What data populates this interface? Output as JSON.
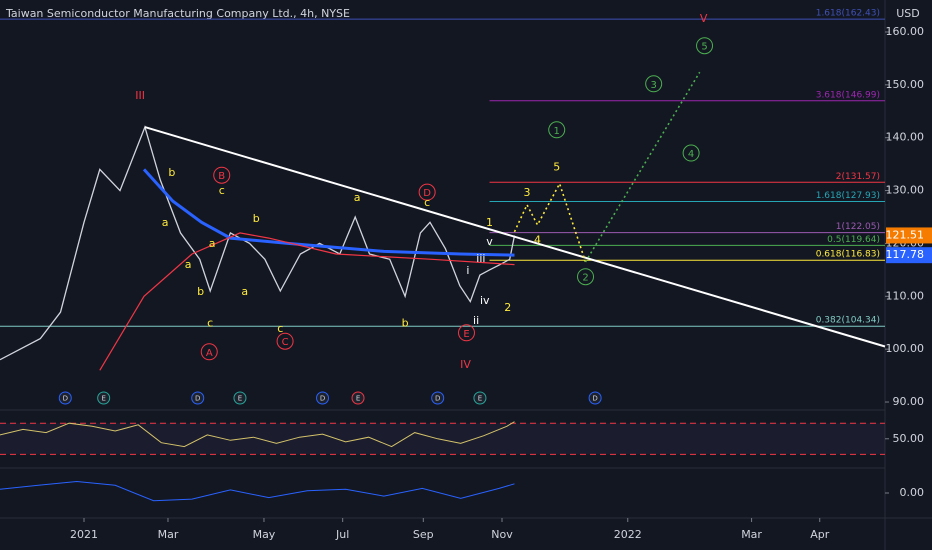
{
  "chart_data": {
    "type": "line",
    "title": "Taiwan Semiconductor Manufacturing Company Ltd., 4h, NYSE",
    "currency": "USD",
    "xlim": [
      0,
      92.2
    ],
    "ylim": [
      88.49,
      166.05
    ],
    "xticks": [
      {
        "value": 8.75,
        "label": "2021"
      },
      {
        "value": 17.5,
        "label": "Mar"
      },
      {
        "value": 27.5,
        "label": "May"
      },
      {
        "value": 35.7,
        "label": "Jul"
      },
      {
        "value": 44.1,
        "label": "Sep"
      },
      {
        "value": 52.3,
        "label": "Nov"
      },
      {
        "value": 65.4,
        "label": "2022"
      },
      {
        "value": 78.3,
        "label": "Mar"
      },
      {
        "value": 85.4,
        "label": "Apr"
      }
    ],
    "yticks": [
      {
        "value": 160,
        "label": "160.00"
      },
      {
        "value": 150,
        "label": "150.00"
      },
      {
        "value": 140,
        "label": "140.00"
      },
      {
        "value": 130,
        "label": "130.00"
      },
      {
        "value": 120,
        "label": "120.00"
      },
      {
        "value": 110,
        "label": "110.00"
      },
      {
        "value": 100,
        "label": "100.00"
      },
      {
        "value": 90,
        "label": "90.00"
      }
    ],
    "series": [
      {
        "color": "#d1d4dc",
        "width": 1.3,
        "x": [
          0,
          4.2,
          6.3,
          8.75,
          10.4,
          12.5,
          15.1,
          16.7,
          18.8,
          20.8,
          21.9,
          24,
          26,
          27.6,
          29.2,
          31.3,
          33.3,
          35.4,
          37,
          38.5,
          40.6,
          42.2,
          43.8,
          44.8,
          46.4,
          47.9,
          49,
          50,
          51,
          52.1,
          53.1,
          53.6
        ],
        "values": [
          98,
          102,
          107,
          124,
          134,
          130,
          142,
          132,
          122,
          117,
          111,
          122,
          120,
          117,
          111,
          118,
          120,
          118,
          125,
          118,
          117,
          110,
          122,
          124,
          119,
          112,
          109,
          114,
          115,
          116,
          117,
          121.5
        ]
      },
      {
        "color": "#2962ff",
        "width": 3,
        "x": [
          15,
          18,
          21,
          24,
          30,
          40,
          48,
          53.6
        ],
        "values": [
          134,
          128,
          124,
          121,
          120,
          118.5,
          118,
          117.8
        ]
      },
      {
        "color": "#f23645",
        "width": 1.2,
        "x": [
          10.4,
          15,
          20,
          25,
          28,
          35,
          45,
          53.6
        ],
        "values": [
          96,
          110,
          118,
          122,
          121,
          118,
          117,
          116
        ]
      }
    ],
    "price_labels": [
      {
        "value": 121.51,
        "color": "#f57c00"
      },
      {
        "value": 117.78,
        "color": "#2962ff"
      }
    ],
    "trendline": {
      "color": "#ffffff",
      "x": [
        15.1,
        92.2
      ],
      "values": [
        142,
        100.5
      ]
    },
    "projections": [
      {
        "color": "#ffeb3b",
        "x": [
          53.6,
          54.9,
          56.0,
          58.3,
          61.0
        ],
        "values": [
          122.2,
          127.3,
          123.5,
          131.3,
          116.5
        ]
      },
      {
        "color": "#4caf50",
        "x": [
          61.0,
          72.9
        ],
        "values": [
          116.5,
          152.4
        ]
      }
    ],
    "fib_levels": [
      {
        "label": "1.618(162.43)",
        "value": 162.43,
        "color": "#3f51b5",
        "from": 0
      },
      {
        "label": "3.618(146.99)",
        "value": 146.99,
        "color": "#9c27b0",
        "from": 51
      },
      {
        "label": "2(131.57)",
        "value": 131.57,
        "color": "#f23645",
        "from": 51
      },
      {
        "label": "1.618(127.93)",
        "value": 127.93,
        "color": "#26a6b5",
        "from": 51
      },
      {
        "label": "1(122.05)",
        "value": 122.05,
        "color": "#9c5ab0",
        "from": 51
      },
      {
        "label": "0.5(119.64)",
        "value": 119.64,
        "color": "#4caf50",
        "from": 51
      },
      {
        "label": "0.618(116.83)",
        "value": 116.83,
        "color": "#ffeb3b",
        "from": 51
      },
      {
        "label": "0.382(104.34)",
        "value": 104.34,
        "color": "#80cbc4",
        "from": 0
      }
    ],
    "annotations": [
      {
        "text": "III",
        "x": 14.6,
        "y": 148.1,
        "color": "#f23645"
      },
      {
        "text": "b",
        "x": 17.9,
        "y": 133.5,
        "color": "#ffeb3b"
      },
      {
        "text": "a",
        "x": 17.2,
        "y": 124.1,
        "color": "#ffeb3b"
      },
      {
        "text": "a",
        "x": 22.1,
        "y": 120.1,
        "color": "#ffeb3b"
      },
      {
        "text": "B",
        "x": 23.1,
        "y": 132.9,
        "color": "#f23645",
        "circle": true
      },
      {
        "text": "c",
        "x": 23.1,
        "y": 130.1,
        "color": "#ffeb3b"
      },
      {
        "text": "b",
        "x": 26.7,
        "y": 124.8,
        "color": "#ffeb3b"
      },
      {
        "text": "a",
        "x": 19.6,
        "y": 116.1,
        "color": "#ffeb3b"
      },
      {
        "text": "a",
        "x": 25.5,
        "y": 111,
        "color": "#ffeb3b"
      },
      {
        "text": "b",
        "x": 20.9,
        "y": 111,
        "color": "#ffeb3b"
      },
      {
        "text": "c",
        "x": 21.9,
        "y": 105,
        "color": "#ffeb3b"
      },
      {
        "text": "c",
        "x": 29.2,
        "y": 104,
        "color": "#ffeb3b"
      },
      {
        "text": "C",
        "x": 29.7,
        "y": 101.5,
        "color": "#f23645",
        "circle": true
      },
      {
        "text": "A",
        "x": 21.8,
        "y": 99.5,
        "color": "#f23645",
        "circle": true
      },
      {
        "text": "a",
        "x": 37.2,
        "y": 128.8,
        "color": "#ffeb3b"
      },
      {
        "text": "D",
        "x": 44.5,
        "y": 129.7,
        "color": "#f23645",
        "circle": true
      },
      {
        "text": "c",
        "x": 44.5,
        "y": 127.8,
        "color": "#ffeb3b"
      },
      {
        "text": "b",
        "x": 42.2,
        "y": 105,
        "color": "#ffeb3b"
      },
      {
        "text": "E",
        "x": 48.6,
        "y": 103.1,
        "color": "#f23645",
        "circle": true
      },
      {
        "text": "IV",
        "x": 48.5,
        "y": 97.2,
        "color": "#f23645"
      },
      {
        "text": "i",
        "x": 48.75,
        "y": 115,
        "color": "#ffffff"
      },
      {
        "text": "ii",
        "x": 49.6,
        "y": 105.5,
        "color": "#ffffff"
      },
      {
        "text": "iii",
        "x": 50.1,
        "y": 117.2,
        "color": "#ffffff"
      },
      {
        "text": "iv",
        "x": 50.5,
        "y": 109.3,
        "color": "#ffffff"
      },
      {
        "text": "v",
        "x": 51.0,
        "y": 120.5,
        "color": "#ffffff"
      },
      {
        "text": "1",
        "x": 51.0,
        "y": 124.1,
        "color": "#ffeb3b"
      },
      {
        "text": "2",
        "x": 52.9,
        "y": 108,
        "color": "#ffeb3b"
      },
      {
        "text": "3",
        "x": 54.9,
        "y": 129.7,
        "color": "#ffeb3b"
      },
      {
        "text": "4",
        "x": 56.0,
        "y": 120.7,
        "color": "#ffeb3b"
      },
      {
        "text": "5",
        "x": 58.0,
        "y": 134.6,
        "color": "#ffeb3b"
      },
      {
        "text": "1",
        "x": 58.0,
        "y": 141.5,
        "color": "#4caf50",
        "circle": true
      },
      {
        "text": "2",
        "x": 61.0,
        "y": 113.7,
        "color": "#4caf50",
        "circle": true
      },
      {
        "text": "3",
        "x": 68.1,
        "y": 150.2,
        "color": "#4caf50",
        "circle": true
      },
      {
        "text": "4",
        "x": 72.0,
        "y": 137.1,
        "color": "#4caf50",
        "circle": true
      },
      {
        "text": "5",
        "x": 73.4,
        "y": 157.4,
        "color": "#4caf50",
        "circle": true
      },
      {
        "text": "V",
        "x": 73.3,
        "y": 162.6,
        "color": "#f23645"
      }
    ],
    "events": [
      {
        "label": "D",
        "x": 6.8,
        "color": "#2962ff"
      },
      {
        "label": "E",
        "x": 10.8,
        "color": "#26a69a"
      },
      {
        "label": "D",
        "x": 20.6,
        "color": "#2962ff"
      },
      {
        "label": "E",
        "x": 25,
        "color": "#26a69a"
      },
      {
        "label": "D",
        "x": 33.6,
        "color": "#2962ff"
      },
      {
        "label": "E",
        "x": 37.3,
        "color": "#f23645"
      },
      {
        "label": "D",
        "x": 45.6,
        "color": "#2962ff"
      },
      {
        "label": "E",
        "x": 50,
        "color": "#26a69a"
      },
      {
        "label": "D",
        "x": 62,
        "color": "#2962ff"
      }
    ],
    "rsi": {
      "ylim": [
        15,
        87
      ],
      "yticks": [
        {
          "value": 50,
          "label": "50.00"
        }
      ],
      "levels": [
        70,
        30
      ],
      "color": "#d4c36a",
      "x": [
        0,
        2.4,
        4.8,
        7.2,
        9.6,
        12,
        14.4,
        16.8,
        19.2,
        21.6,
        24,
        26.4,
        28.8,
        31.2,
        33.6,
        36,
        38.4,
        40.8,
        43.2,
        45.6,
        48,
        50.4,
        52.8,
        53.6
      ],
      "values": [
        55,
        62,
        58,
        70,
        66,
        60,
        68,
        45,
        40,
        55,
        48,
        52,
        44,
        52,
        56,
        46,
        52,
        40,
        58,
        50,
        44,
        54,
        66,
        72
      ]
    },
    "macd": {
      "ylim": [
        -3,
        3
      ],
      "yticks": [
        {
          "value": 0,
          "label": "0.00"
        }
      ],
      "color": "#2962ff",
      "x": [
        0,
        4,
        8,
        12,
        16,
        20,
        24,
        28,
        32,
        36,
        40,
        44,
        48,
        52,
        53.6
      ],
      "values": [
        0.5,
        1,
        1.5,
        1,
        -1,
        -0.8,
        0.4,
        -0.6,
        0.3,
        0.5,
        -0.4,
        0.6,
        -0.7,
        0.6,
        1.2
      ]
    }
  }
}
